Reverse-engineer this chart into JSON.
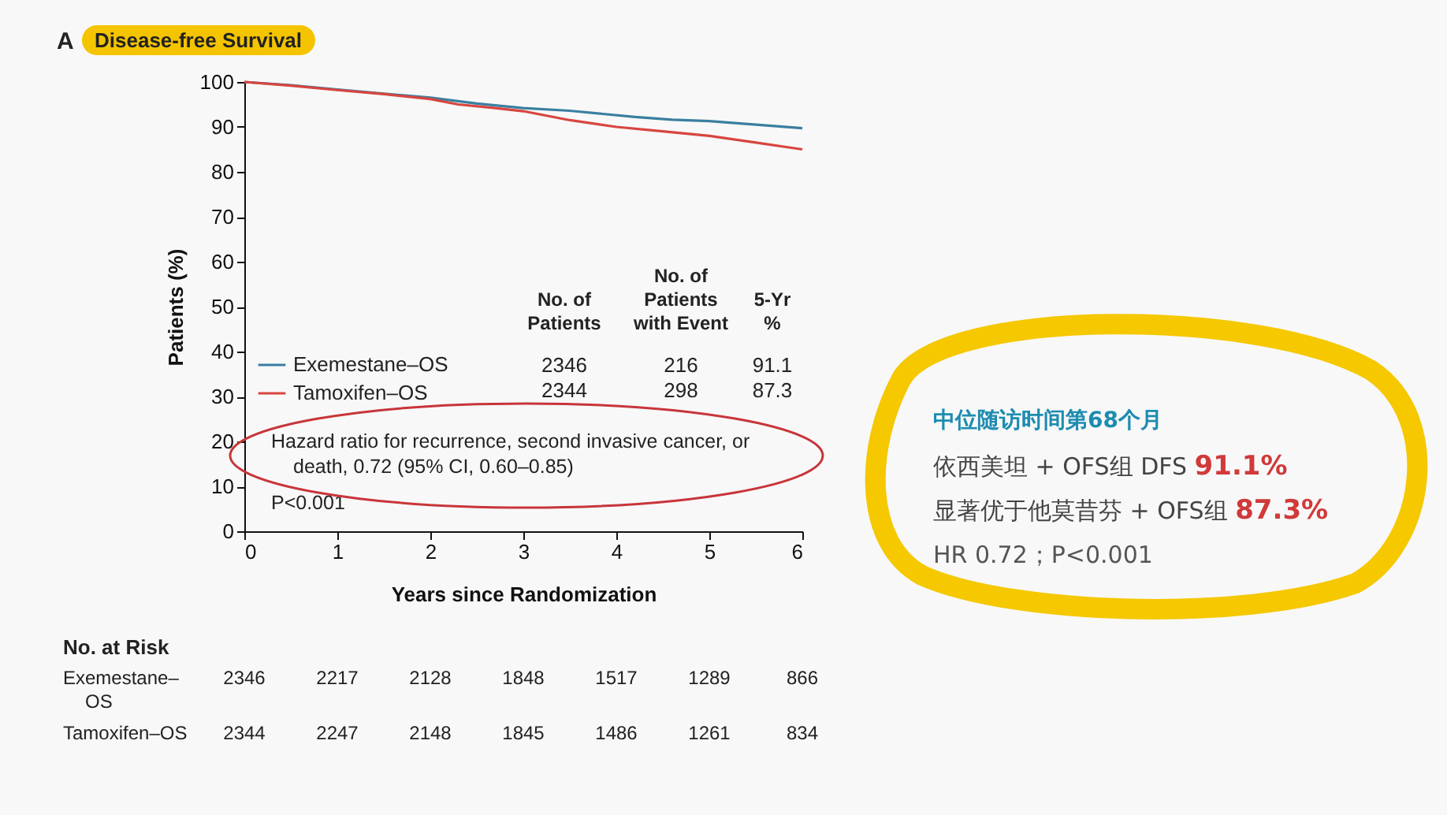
{
  "chart_data": {
    "type": "line",
    "title": "Disease-free Survival",
    "xlabel": "Years since Randomization",
    "ylabel": "Patients (%)",
    "xlim": [
      0,
      6
    ],
    "xticks": [
      0,
      1,
      2,
      3,
      4,
      5,
      6
    ],
    "ylim": [
      0,
      100
    ],
    "yticks": [
      0,
      10,
      20,
      30,
      40,
      50,
      60,
      70,
      80,
      90,
      100
    ],
    "grid": false,
    "legend": "left",
    "marker": "none",
    "line_style": "solid",
    "series": [
      {
        "name": "Exemestane–OS",
        "color": "#3a7fa0",
        "x": [
          0,
          0.5,
          1,
          1.5,
          2,
          2.5,
          3,
          3.5,
          3.8,
          4.2,
          4.6,
          5,
          5.5,
          6
        ],
        "values": [
          100,
          99.3,
          98.3,
          97.4,
          96.5,
          95.2,
          94.2,
          93.6,
          93,
          92.2,
          91.6,
          91.3,
          90.5,
          89.7
        ]
      },
      {
        "name": "Tamoxifen–OS",
        "color": "#d8453f",
        "x": [
          0,
          0.5,
          1,
          1.5,
          2,
          2.3,
          2.7,
          3,
          3.5,
          4,
          4.5,
          5,
          5.5,
          6
        ],
        "values": [
          100,
          99.2,
          98.2,
          97.3,
          96.2,
          95,
          94.2,
          93.5,
          91.5,
          90,
          89,
          88,
          86.5,
          85
        ]
      }
    ],
    "annotations": [
      "A",
      "No. of Patients",
      "No. of Patients with Event",
      "5-Yr %",
      "2346 216 91.1",
      "2344 298 87.3",
      "Hazard ratio for recurrence, second invasive cancer, or death, 0.72 (95% CI, 0.60–0.85)",
      "P<0.001",
      "No. at Risk",
      "Exemestane–OS 2346 2217 2128 1848 1517 1289 866",
      "Tamoxifen–OS 2344 2247 2148 1845 1486 1261 834",
      "中位随访时间第68个月",
      "依西美坦 + OFS组 DFS 91.1%",
      "显著优于他莫昔芬 + OFS组 87.3%",
      "HR 0.72；P<0.001"
    ]
  }
}
